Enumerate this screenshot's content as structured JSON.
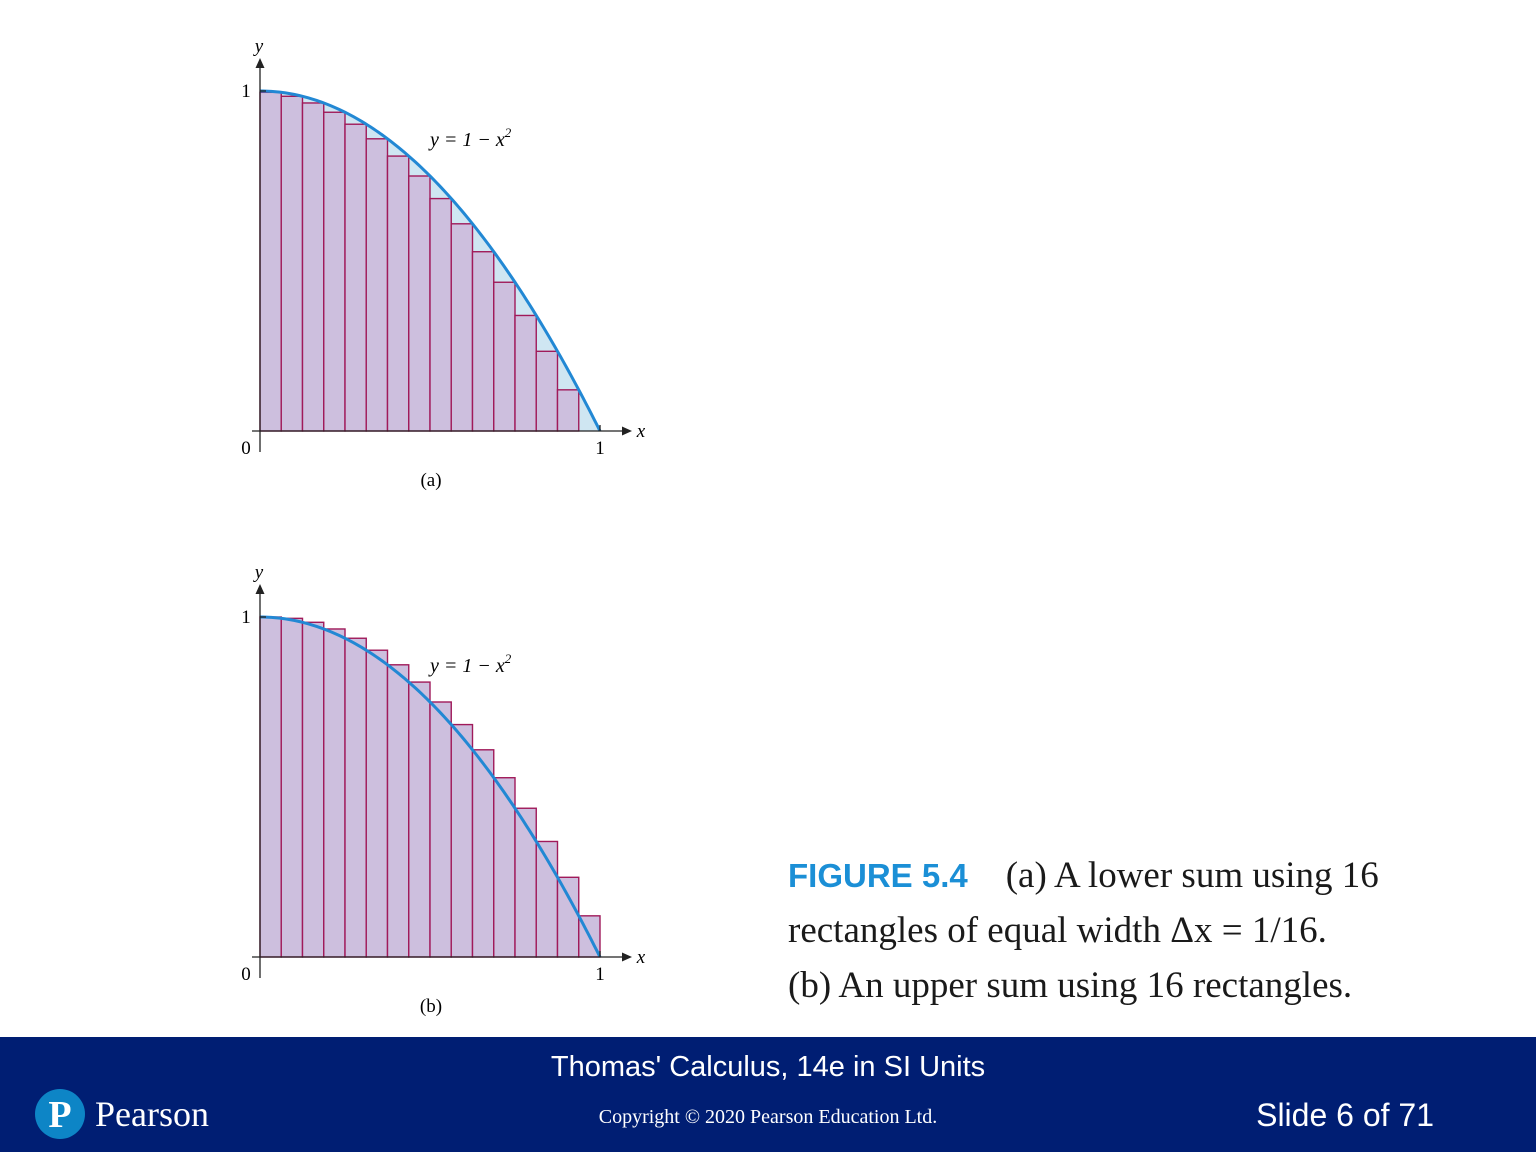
{
  "chart_data": [
    {
      "type": "bar",
      "panel_label": "(a)",
      "curve_label": "y = 1 − x",
      "curve_exponent": "2",
      "xlabel": "x",
      "ylabel": "y",
      "x_ticks": [
        "0",
        "1"
      ],
      "y_ticks": [
        "1"
      ],
      "xlim": [
        0,
        1
      ],
      "ylim": [
        0,
        1
      ],
      "n_rectangles": 16,
      "sum": "lower",
      "x": [
        0,
        0.0625,
        0.125,
        0.1875,
        0.25,
        0.3125,
        0.375,
        0.4375,
        0.5,
        0.5625,
        0.625,
        0.6875,
        0.75,
        0.8125,
        0.875,
        0.9375
      ],
      "values": [
        0.9961,
        0.9844,
        0.9648,
        0.9375,
        0.9023,
        0.8594,
        0.8086,
        0.75,
        0.6836,
        0.6094,
        0.5273,
        0.4375,
        0.3398,
        0.2344,
        0.1211,
        0.0
      ]
    },
    {
      "type": "bar",
      "panel_label": "(b)",
      "curve_label": "y = 1 − x",
      "curve_exponent": "2",
      "xlabel": "x",
      "ylabel": "y",
      "x_ticks": [
        "0",
        "1"
      ],
      "y_ticks": [
        "1"
      ],
      "xlim": [
        0,
        1
      ],
      "ylim": [
        0,
        1
      ],
      "n_rectangles": 16,
      "sum": "upper",
      "x": [
        0,
        0.0625,
        0.125,
        0.1875,
        0.25,
        0.3125,
        0.375,
        0.4375,
        0.5,
        0.5625,
        0.625,
        0.6875,
        0.75,
        0.8125,
        0.875,
        0.9375
      ],
      "values": [
        1.0,
        0.9961,
        0.9844,
        0.9648,
        0.9375,
        0.9023,
        0.8594,
        0.8086,
        0.75,
        0.6836,
        0.6094,
        0.5273,
        0.4375,
        0.3398,
        0.2344,
        0.1211
      ]
    }
  ],
  "caption": {
    "figure_label": "FIGURE 5.4",
    "line1": "(a) A lower sum using 16",
    "line2": "rectangles of equal width Δx = 1/16.",
    "line3": "(b) An upper sum using 16 rectangles."
  },
  "colors": {
    "curve": "#2288d4",
    "rect_fill": "#cdbfde",
    "rect_stroke": "#a01a5a",
    "gap_fill_lower": "#cfe6f2",
    "gap_fill_upper": "#f3cde0",
    "footer_bg": "#001e73",
    "figure_label": "#1b8fd6"
  },
  "footer": {
    "book_title": "Thomas' Calculus, 14e in SI Units",
    "copyright": "Copyright © 2020 Pearson Education Ltd.",
    "slide_indicator": "Slide 6 of 71",
    "brand": "Pearson",
    "logo_letter": "P"
  }
}
